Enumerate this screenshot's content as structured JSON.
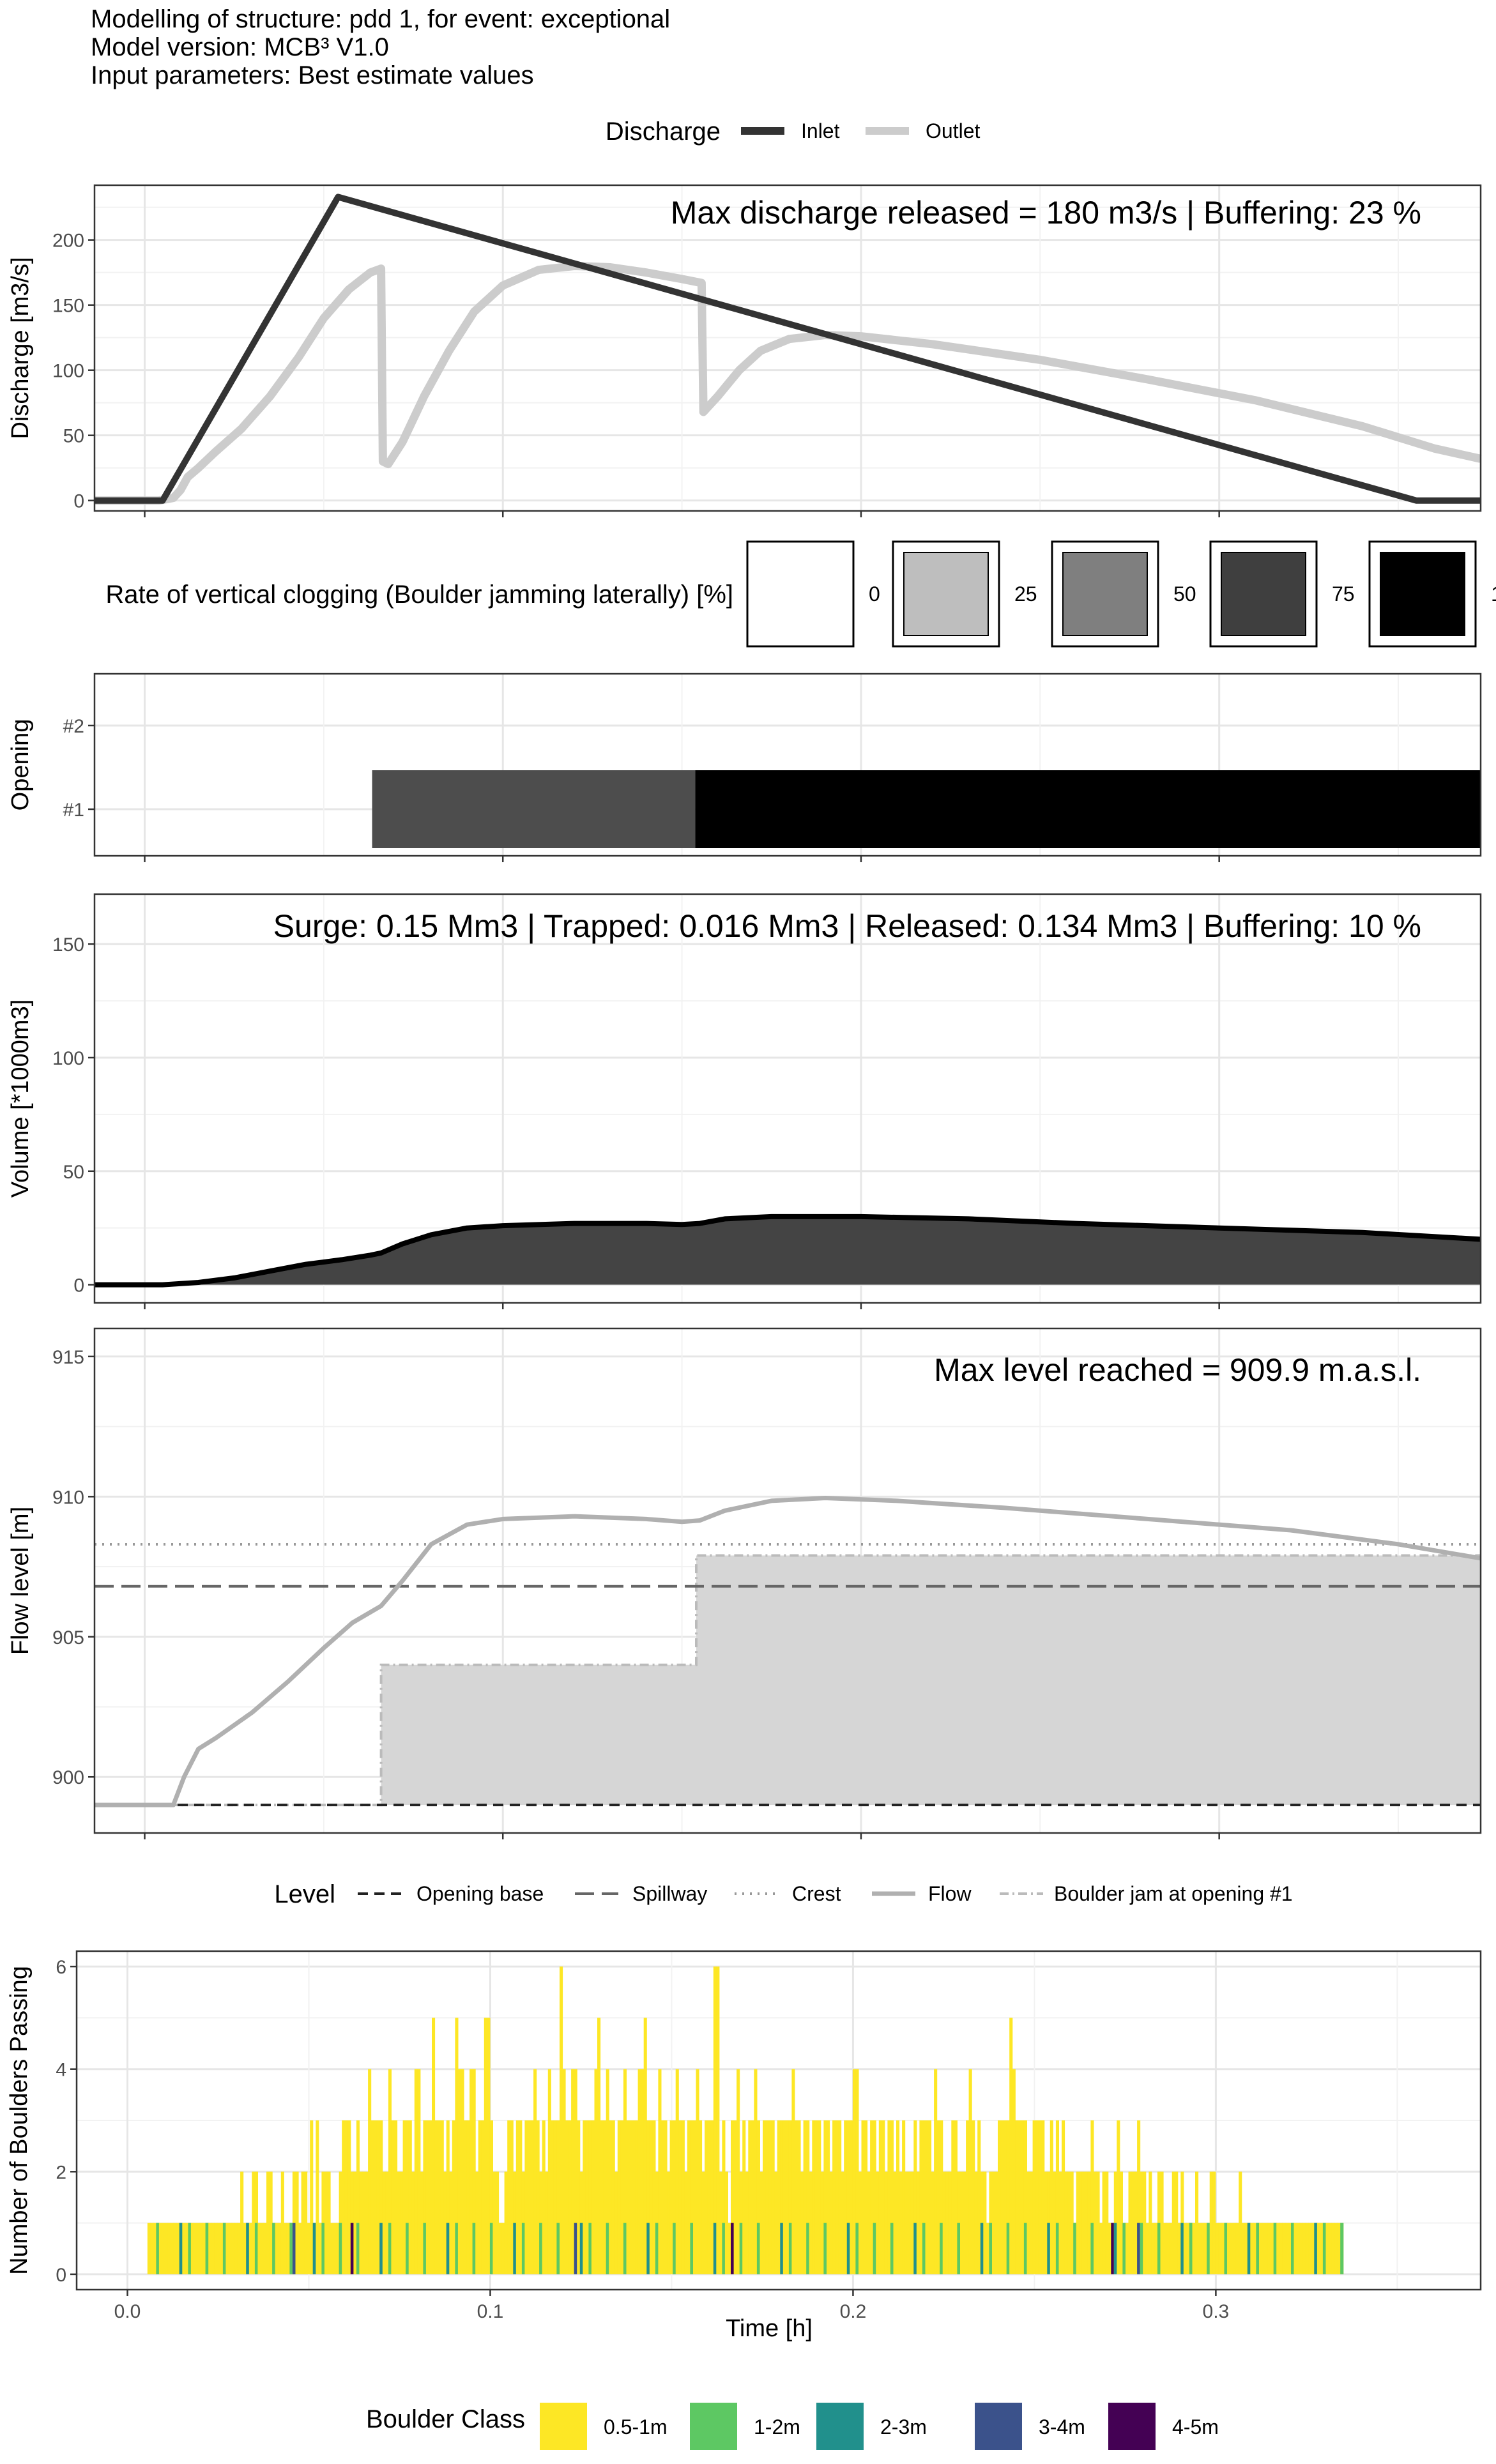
{
  "header": {
    "line1": "Modelling of structure: pdd 1, for event: exceptional",
    "line2": "Model version: MCB³ V1.0",
    "line3": "Input parameters: Best estimate values"
  },
  "chart_data": [
    {
      "type": "line",
      "ylabel": "Discharge [m3/s]",
      "ylim": [
        -8,
        242
      ],
      "xlim": [
        -0.014,
        0.373
      ],
      "yticks": [
        0,
        50,
        100,
        150,
        200
      ],
      "annotation": "Max discharge released = 180 m3/s | Buffering: 23 %",
      "legend": {
        "title": "Discharge",
        "entries": [
          "Inlet",
          "Outlet"
        ],
        "position": "top"
      },
      "grid": true,
      "series": [
        {
          "name": "Inlet",
          "color": "#333333",
          "points": [
            [
              -0.014,
              0
            ],
            [
              0.005,
              0
            ],
            [
              0.054,
              233
            ],
            [
              0.355,
              0
            ],
            [
              0.373,
              0
            ]
          ]
        },
        {
          "name": "Outlet",
          "color": "#cccccc",
          "points": [
            [
              -0.014,
              0
            ],
            [
              0.004,
              0
            ],
            [
              0.008,
              2
            ],
            [
              0.01,
              8
            ],
            [
              0.012,
              18
            ],
            [
              0.015,
              25
            ],
            [
              0.02,
              38
            ],
            [
              0.027,
              55
            ],
            [
              0.035,
              80
            ],
            [
              0.043,
              110
            ],
            [
              0.05,
              140
            ],
            [
              0.057,
              162
            ],
            [
              0.063,
              175
            ],
            [
              0.066,
              178
            ],
            [
              0.0665,
              30
            ],
            [
              0.068,
              28
            ],
            [
              0.072,
              45
            ],
            [
              0.078,
              80
            ],
            [
              0.085,
              115
            ],
            [
              0.092,
              145
            ],
            [
              0.1,
              165
            ],
            [
              0.11,
              177
            ],
            [
              0.12,
              180
            ],
            [
              0.13,
              179
            ],
            [
              0.14,
              175
            ],
            [
              0.15,
              170
            ],
            [
              0.1555,
              167
            ],
            [
              0.156,
              68
            ],
            [
              0.16,
              80
            ],
            [
              0.166,
              100
            ],
            [
              0.172,
              115
            ],
            [
              0.18,
              124
            ],
            [
              0.19,
              127
            ],
            [
              0.2,
              126
            ],
            [
              0.22,
              120
            ],
            [
              0.25,
              108
            ],
            [
              0.28,
              93
            ],
            [
              0.31,
              77
            ],
            [
              0.34,
              57
            ],
            [
              0.36,
              40
            ],
            [
              0.373,
              32
            ]
          ]
        }
      ]
    },
    {
      "type": "heatmap",
      "ylabel": "Opening",
      "yticks": [
        "#1",
        "#2"
      ],
      "legend": {
        "title": "Rate of vertical clogging (Boulder jamming laterally) [%]",
        "entries": [
          {
            "label": "0",
            "color": "#ffffff"
          },
          {
            "label": "25",
            "color": "#bebebe"
          },
          {
            "label": "50",
            "color": "#7f7f7f"
          },
          {
            "label": "75",
            "color": "#3f3f3f"
          },
          {
            "label": "1",
            "color": "#000000"
          }
        ]
      },
      "cells": [
        {
          "opening": "#1",
          "x0": 0.0635,
          "x1": 0.1537,
          "color": "#4d4d4d"
        },
        {
          "opening": "#1",
          "x0": 0.1537,
          "x1": 0.373,
          "color": "#000000"
        }
      ]
    },
    {
      "type": "area",
      "ylabel": "Volume [*1000m3]",
      "ylim": [
        -8,
        172
      ],
      "yticks": [
        0,
        50,
        100,
        150
      ],
      "annotation": "Surge: 0.15 Mm3 | Trapped: 0.016 Mm3 | Released: 0.134 Mm3 | Buffering: 10 %",
      "series": [
        {
          "color": "#444444",
          "points": [
            [
              -0.014,
              0
            ],
            [
              0.005,
              0
            ],
            [
              0.015,
              1
            ],
            [
              0.025,
              3
            ],
            [
              0.035,
              6
            ],
            [
              0.045,
              9
            ],
            [
              0.055,
              11
            ],
            [
              0.063,
              13
            ],
            [
              0.066,
              14
            ],
            [
              0.072,
              18
            ],
            [
              0.08,
              22
            ],
            [
              0.09,
              25
            ],
            [
              0.1,
              26
            ],
            [
              0.12,
              27
            ],
            [
              0.14,
              27
            ],
            [
              0.15,
              26.5
            ],
            [
              0.155,
              27
            ],
            [
              0.162,
              29
            ],
            [
              0.175,
              30
            ],
            [
              0.2,
              30
            ],
            [
              0.23,
              29
            ],
            [
              0.26,
              27
            ],
            [
              0.3,
              25
            ],
            [
              0.34,
              23
            ],
            [
              0.373,
              20
            ]
          ]
        }
      ]
    },
    {
      "type": "line",
      "ylabel": "Flow level [m]",
      "ylim": [
        898,
        916
      ],
      "yticks": [
        900,
        905,
        910,
        915
      ],
      "annotation": "Max level reached = 909.9 m.a.s.l.",
      "legend": {
        "title": "Level",
        "entries": [
          "Opening base",
          "Spillway",
          "Crest",
          "Flow",
          "Boulder jam at opening #1"
        ],
        "position": "bottom"
      },
      "hlines": [
        {
          "name": "Opening base",
          "y": 899.0,
          "color": "#222222",
          "dash": "dashed"
        },
        {
          "name": "Spillway",
          "y": 906.8,
          "color": "#666666",
          "dash": "longdash"
        },
        {
          "name": "Crest",
          "y": 908.3,
          "color": "#999999",
          "dash": "dotted"
        }
      ],
      "jam": {
        "name": "Boulder jam at opening #1",
        "color": "#bbbbbb",
        "fill": "#d6d6d6",
        "steps": [
          [
            -0.014,
            899
          ],
          [
            0.066,
            899
          ],
          [
            0.066,
            904.0
          ],
          [
            0.154,
            904.0
          ],
          [
            0.154,
            907.9
          ],
          [
            0.373,
            907.9
          ]
        ]
      },
      "flow": {
        "name": "Flow",
        "color": "#b0b0b0",
        "points": [
          [
            -0.014,
            899
          ],
          [
            0.008,
            899
          ],
          [
            0.011,
            900
          ],
          [
            0.015,
            901
          ],
          [
            0.02,
            901.4
          ],
          [
            0.03,
            902.3
          ],
          [
            0.04,
            903.4
          ],
          [
            0.05,
            904.6
          ],
          [
            0.058,
            905.5
          ],
          [
            0.066,
            906.1
          ],
          [
            0.072,
            907.0
          ],
          [
            0.08,
            908.3
          ],
          [
            0.09,
            909.0
          ],
          [
            0.1,
            909.2
          ],
          [
            0.12,
            909.3
          ],
          [
            0.14,
            909.2
          ],
          [
            0.15,
            909.1
          ],
          [
            0.155,
            909.15
          ],
          [
            0.162,
            909.5
          ],
          [
            0.175,
            909.85
          ],
          [
            0.19,
            909.95
          ],
          [
            0.21,
            909.85
          ],
          [
            0.24,
            909.6
          ],
          [
            0.28,
            909.2
          ],
          [
            0.32,
            908.8
          ],
          [
            0.35,
            908.3
          ],
          [
            0.373,
            907.8
          ]
        ]
      }
    },
    {
      "type": "bar",
      "ylabel": "Number of Boulders Passing",
      "xlabel": "Time [h]",
      "ylim": [
        -0.3,
        6.3
      ],
      "xlim": [
        -0.014,
        0.373
      ],
      "yticks": [
        0,
        2,
        4,
        6
      ],
      "xticks": [
        0.0,
        0.1,
        0.2,
        0.3
      ],
      "xtick_labels": [
        "0.0",
        "0.1",
        "0.2",
        "0.3"
      ],
      "legend": {
        "title": "Boulder Class",
        "entries": [
          {
            "label": "0.5-1m",
            "color": "#FDE725"
          },
          {
            "label": "1-2m",
            "color": "#5DC863"
          },
          {
            "label": "2-3m",
            "color": "#21908C"
          },
          {
            "label": "3-4m",
            "color": "#3B528B"
          },
          {
            "label": "4-5m",
            "color": "#440154"
          }
        ]
      },
      "bin_width": 0.0008,
      "x_start": 0.0055,
      "heights": [
        1,
        1,
        1,
        1,
        1,
        1,
        1,
        1,
        1,
        1,
        1,
        1,
        1,
        1,
        1,
        1,
        1,
        1,
        1,
        1,
        1,
        1,
        1,
        1,
        1,
        1,
        1,
        1,
        1,
        1,
        1,
        1,
        2,
        1,
        1,
        1,
        2,
        2,
        1,
        1,
        1,
        2,
        2,
        1,
        1,
        1,
        2,
        1,
        1,
        1,
        2,
        2,
        1,
        2,
        2,
        1,
        3,
        1,
        3,
        1,
        2,
        2,
        2,
        1,
        1,
        1,
        2,
        3,
        3,
        3,
        2,
        2,
        3,
        2,
        2,
        2,
        4,
        3,
        3,
        3,
        3,
        2,
        2,
        4,
        3,
        3,
        2,
        2,
        3,
        3,
        3,
        2,
        4,
        4,
        2,
        3,
        3,
        3,
        5,
        3,
        3,
        3,
        2,
        3,
        2,
        3,
        5,
        4,
        4,
        3,
        3,
        4,
        4,
        2,
        3,
        3,
        5,
        5,
        3,
        2,
        2,
        1,
        1,
        2,
        3,
        3,
        2,
        3,
        3,
        2,
        3,
        3,
        3,
        4,
        3,
        2,
        3,
        2,
        4,
        3,
        3,
        3,
        6,
        4,
        3,
        3,
        4,
        4,
        3,
        2,
        3,
        3,
        3,
        3,
        4,
        5,
        3,
        3,
        4,
        3,
        3,
        2,
        3,
        3,
        4,
        3,
        3,
        3,
        3,
        4,
        4,
        5,
        3,
        3,
        3,
        2,
        4,
        3,
        3,
        2,
        3,
        3,
        4,
        3,
        3,
        2,
        3,
        3,
        3,
        4,
        3,
        2,
        3,
        3,
        3,
        6,
        6,
        2,
        3,
        2,
        1,
        3,
        3,
        4,
        2,
        3,
        2,
        3,
        3,
        4,
        3,
        2,
        3,
        3,
        3,
        3,
        2,
        3,
        3,
        3,
        3,
        3,
        4,
        3,
        3,
        2,
        3,
        3,
        2,
        3,
        3,
        3,
        2,
        3,
        3,
        2,
        3,
        3,
        3,
        2,
        3,
        3,
        3,
        4,
        4,
        2,
        3,
        3,
        2,
        3,
        3,
        2,
        3,
        3,
        2,
        3,
        3,
        2,
        3,
        2,
        3,
        2,
        2,
        2,
        3,
        2,
        3,
        3,
        3,
        3,
        2,
        4,
        3,
        3,
        2,
        2,
        2,
        3,
        3,
        2,
        2,
        2,
        3,
        4,
        3,
        2,
        3,
        2,
        2,
        1,
        2,
        2,
        2,
        3,
        3,
        3,
        3,
        5,
        4,
        3,
        3,
        3,
        3,
        2,
        2,
        3,
        3,
        3,
        3,
        2,
        2,
        3,
        2,
        3,
        2,
        3,
        2,
        2,
        2,
        1,
        2,
        2,
        2,
        2,
        2,
        3,
        2,
        2,
        1,
        2,
        2,
        1,
        1,
        2,
        3,
        2,
        1,
        1,
        2,
        2,
        2,
        3,
        2,
        2,
        1,
        2,
        1,
        1,
        2,
        2,
        1,
        1,
        1,
        2,
        2,
        1,
        2,
        1,
        1,
        1,
        1,
        2,
        1,
        1,
        1,
        1,
        2,
        2,
        1,
        1,
        1,
        1,
        1,
        1,
        1,
        1,
        2,
        1,
        1,
        1,
        1,
        1,
        1,
        1,
        1,
        1,
        1,
        1,
        1,
        1,
        1,
        1,
        1,
        1,
        1,
        1,
        1,
        1,
        1,
        1,
        1,
        1,
        1,
        1,
        1,
        1,
        1,
        1,
        1,
        1,
        1,
        1
      ]
    }
  ]
}
